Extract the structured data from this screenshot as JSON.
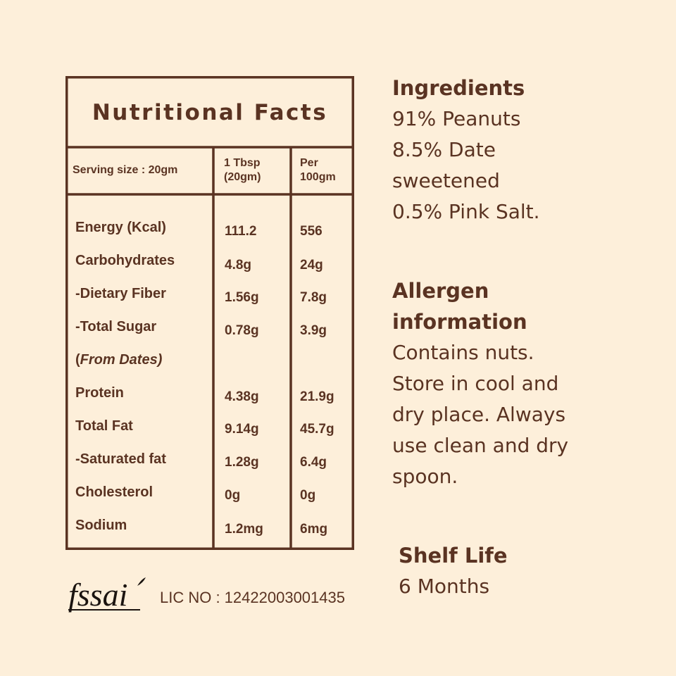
{
  "colors": {
    "background": "#fdefda",
    "text": "#5a3322",
    "logo": "#1b1410"
  },
  "nutrition": {
    "title": "Nutritional Facts",
    "serving_size": "Serving size : 20gm",
    "col1_line1": "1 Tbsp",
    "col1_line2": "(20gm)",
    "col2_line1": "Per",
    "col2_line2": "100gm",
    "rows": [
      {
        "label": "Energy (Kcal)",
        "per_tbsp": "111.2",
        "per_100g": "556"
      },
      {
        "label": "Carbohydrates",
        "per_tbsp": "4.8g",
        "per_100g": "24g"
      },
      {
        "label": "-Dietary Fiber",
        "per_tbsp": "1.56g",
        "per_100g": "7.8g"
      },
      {
        "label": "-Total Sugar",
        "per_tbsp": "0.78g",
        "per_100g": "3.9g"
      },
      {
        "label_open": "(",
        "label_italic": "From Dates)",
        "per_tbsp": "",
        "per_100g": ""
      },
      {
        "label": "Protein",
        "per_tbsp": "4.38g",
        "per_100g": "21.9g"
      },
      {
        "label": "Total Fat",
        "per_tbsp": "9.14g",
        "per_100g": "45.7g"
      },
      {
        "label": "-Saturated fat",
        "per_tbsp": "1.28g",
        "per_100g": "6.4g"
      },
      {
        "label": "Cholesterol",
        "per_tbsp": "0g",
        "per_100g": "0g"
      },
      {
        "label": "Sodium",
        "per_tbsp": "1.2mg",
        "per_100g": "6mg"
      }
    ]
  },
  "ingredients": {
    "heading": "Ingredients",
    "lines": [
      "91% Peanuts",
      "8.5% Date",
      "sweetened",
      "0.5% Pink Salt."
    ]
  },
  "allergen": {
    "heading_line1": "Allergen",
    "heading_line2": "information",
    "lines": [
      "Contains nuts.",
      "Store in cool and",
      "dry place. Always",
      "use clean and dry",
      "spoon."
    ]
  },
  "shelf_life": {
    "heading": "Shelf Life",
    "value": "6 Months"
  },
  "fssai": {
    "logo_text": "fssai",
    "license": "LIC NO : 12422003001435"
  }
}
